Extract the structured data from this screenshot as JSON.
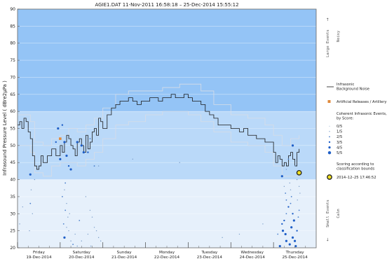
{
  "chart_data": {
    "type": "line",
    "title": "AGIE1.DAT   11-Nov-2011 16:58:18   –   25-Dec-2014 15:55:12",
    "ylabel": "Infrasound Pressure Level  ( dBre2µPa )",
    "ylim": [
      20,
      90
    ],
    "yticks": [
      20,
      25,
      30,
      35,
      40,
      45,
      50,
      55,
      60,
      65,
      70,
      75,
      80,
      85,
      90
    ],
    "xlim": [
      0,
      7
    ],
    "days": [
      {
        "day": "Friday",
        "date": "19-Dec-2014"
      },
      {
        "day": "Saturday",
        "date": "20-Dec-2014"
      },
      {
        "day": "Sunday",
        "date": "21-Dec-2014"
      },
      {
        "day": "Monday",
        "date": "22-Dec-2014"
      },
      {
        "day": "Tuesday",
        "date": "23-Dec-2014"
      },
      {
        "day": "Wednesday",
        "date": "24-Dec-2014"
      },
      {
        "day": "Thursday",
        "date": "25-Dec-2014"
      }
    ],
    "bands": [
      {
        "from": 60,
        "to": 90,
        "color": "#94c4f6"
      },
      {
        "from": 40,
        "to": 60,
        "color": "#bad9f9"
      },
      {
        "from": 20,
        "to": 40,
        "color": "#e6f0fb"
      }
    ],
    "right_annotations": {
      "large_events": "Large Events",
      "noisy": "Noisy",
      "small_events": "Small Events",
      "calm": "Calm",
      "arrow_up": "→",
      "arrow_down": "←"
    },
    "legend": {
      "background_noise": "Infrasonic\nBackground Noise",
      "artificial": "Artificial Releases / Artillery",
      "coherent_title": "Coherent Infrasonic Events,\nby Score:",
      "scores": [
        "0/5",
        "1/5",
        "2/5",
        "3/5",
        "4/5",
        "5/5"
      ],
      "scoring_note": "Scoring according to\nclassification bounds",
      "current_time": "2014–12–25 17:46:52"
    },
    "colors": {
      "noise_line": "#1a1a1a",
      "envelope": "#d8dde6",
      "artificial": "#e08a3c",
      "event_small": "#7a9cc8",
      "event_mid": "#4a7fcb",
      "event_high": "#1f5fc7",
      "current_fill": "#f0e020"
    },
    "series": [
      {
        "role": "background_noise",
        "x": [
          0.0,
          0.05,
          0.1,
          0.15,
          0.2,
          0.25,
          0.3,
          0.35,
          0.4,
          0.45,
          0.5,
          0.55,
          0.6,
          0.7,
          0.8,
          0.9,
          1.0,
          1.05,
          1.1,
          1.15,
          1.2,
          1.25,
          1.3,
          1.35,
          1.4,
          1.45,
          1.5,
          1.55,
          1.6,
          1.65,
          1.7,
          1.75,
          1.8,
          1.85,
          1.9,
          1.95,
          2.0,
          2.1,
          2.2,
          2.3,
          2.4,
          2.5,
          2.6,
          2.7,
          2.8,
          2.9,
          3.0,
          3.1,
          3.2,
          3.3,
          3.4,
          3.5,
          3.6,
          3.7,
          3.8,
          3.9,
          4.0,
          4.1,
          4.2,
          4.3,
          4.4,
          4.5,
          4.6,
          4.7,
          4.8,
          4.9,
          5.0,
          5.1,
          5.2,
          5.3,
          5.4,
          5.5,
          5.6,
          5.7,
          5.8,
          5.9,
          6.0,
          6.05,
          6.1,
          6.15,
          6.2,
          6.25,
          6.3,
          6.35,
          6.4,
          6.45,
          6.5,
          6.55,
          6.6
        ],
        "y": [
          56,
          57,
          55,
          58,
          57,
          54,
          52,
          47,
          44,
          43,
          44,
          47,
          45,
          47,
          49,
          47,
          50,
          48,
          51,
          53,
          52,
          50,
          49,
          47,
          51,
          52,
          50,
          48,
          53,
          49,
          51,
          54,
          55,
          53,
          58,
          57,
          55,
          59,
          61,
          62,
          63,
          63,
          64,
          63,
          62,
          63,
          63,
          64,
          64,
          63,
          64,
          64,
          65,
          64,
          64,
          65,
          64,
          63,
          63,
          62,
          60,
          59,
          58,
          56,
          56,
          56,
          55,
          55,
          54,
          55,
          53,
          53,
          52,
          52,
          51,
          51,
          48,
          45,
          47,
          46,
          44,
          45,
          44,
          47,
          48,
          46,
          44,
          48,
          49
        ]
      },
      {
        "role": "upper_envelope",
        "x": [
          0.0,
          0.3,
          0.4,
          0.6,
          0.8,
          1.0,
          1.2,
          1.4,
          1.6,
          1.8,
          2.0,
          2.3,
          2.6,
          3.0,
          3.4,
          3.8,
          4.0,
          4.3,
          4.6,
          5.0,
          5.4,
          5.8,
          6.0,
          6.2,
          6.4,
          6.6
        ],
        "y": [
          59,
          57,
          51,
          50,
          52,
          53,
          55,
          54,
          56,
          58,
          61,
          65,
          66,
          66,
          67,
          68,
          68,
          66,
          62,
          59,
          58,
          56,
          53,
          50,
          52,
          53
        ]
      },
      {
        "role": "lower_envelope",
        "x": [
          0.0,
          0.3,
          0.4,
          0.6,
          0.8,
          1.0,
          1.2,
          1.4,
          1.6,
          1.8,
          2.0,
          2.3,
          2.6,
          3.0,
          3.4,
          3.8,
          4.0,
          4.3,
          4.6,
          5.0,
          5.4,
          5.8,
          6.0,
          6.2,
          6.4,
          6.6
        ],
        "y": [
          50,
          48,
          42,
          41,
          44,
          45,
          45,
          44,
          46,
          48,
          52,
          56,
          57,
          59,
          60,
          60,
          59,
          57,
          54,
          51,
          50,
          48,
          44,
          41,
          41,
          42
        ]
      },
      {
        "role": "events",
        "points": [
          [
            0.3,
            41.5,
            4
          ],
          [
            0.3,
            33,
            2
          ],
          [
            0.32,
            37,
            1
          ],
          [
            0.35,
            30,
            1
          ],
          [
            0.28,
            25,
            1
          ],
          [
            0.12,
            32,
            1
          ],
          [
            0.05,
            27,
            1
          ],
          [
            0.4,
            40,
            1
          ],
          [
            0.9,
            51,
            3
          ],
          [
            0.95,
            55,
            4
          ],
          [
            1.05,
            56,
            3
          ],
          [
            1.1,
            51,
            4
          ],
          [
            1.12,
            39,
            2
          ],
          [
            1.0,
            46,
            4
          ],
          [
            1.15,
            47,
            4
          ],
          [
            1.2,
            44,
            3
          ],
          [
            1.25,
            43,
            4
          ],
          [
            1.4,
            51,
            4
          ],
          [
            1.5,
            50,
            4
          ],
          [
            1.55,
            48,
            4
          ],
          [
            1.65,
            48,
            3
          ],
          [
            1.7,
            52,
            2
          ],
          [
            1.8,
            44,
            2
          ],
          [
            1.9,
            44,
            1
          ],
          [
            1.1,
            37,
            1
          ],
          [
            1.05,
            35,
            2
          ],
          [
            1.15,
            33,
            1
          ],
          [
            1.12,
            31,
            2
          ],
          [
            1.18,
            29,
            1
          ],
          [
            1.08,
            27,
            2
          ],
          [
            1.2,
            25,
            1
          ],
          [
            1.1,
            23,
            4
          ],
          [
            1.25,
            22,
            1
          ],
          [
            1.3,
            21,
            2
          ],
          [
            1.35,
            24,
            1
          ],
          [
            1.4,
            20.5,
            1
          ],
          [
            1.45,
            28,
            2
          ],
          [
            1.5,
            22,
            1
          ],
          [
            1.15,
            26,
            1
          ],
          [
            1.22,
            30,
            1
          ],
          [
            1.6,
            35,
            1
          ],
          [
            1.7,
            31,
            1
          ],
          [
            1.75,
            29,
            1
          ],
          [
            1.8,
            26,
            1
          ],
          [
            1.85,
            25,
            1
          ],
          [
            1.9,
            23,
            1
          ],
          [
            1.95,
            22,
            1
          ],
          [
            1.65,
            24,
            1
          ],
          [
            1.72,
            20.5,
            1
          ],
          [
            2.7,
            46,
            1
          ],
          [
            3.8,
            45,
            1
          ],
          [
            4.8,
            23,
            1
          ],
          [
            5.2,
            24,
            1
          ],
          [
            5.75,
            27,
            1
          ],
          [
            6.2,
            41,
            4
          ],
          [
            6.25,
            38,
            1
          ],
          [
            6.28,
            36,
            2
          ],
          [
            6.3,
            34,
            2
          ],
          [
            6.35,
            32,
            3
          ],
          [
            6.3,
            30,
            2
          ],
          [
            6.25,
            28,
            3
          ],
          [
            6.2,
            27,
            3
          ],
          [
            6.22,
            25,
            4
          ],
          [
            6.28,
            24,
            4
          ],
          [
            6.3,
            22,
            4
          ],
          [
            6.38,
            21,
            4
          ],
          [
            6.42,
            26,
            4
          ],
          [
            6.45,
            23,
            4
          ],
          [
            6.5,
            22,
            4
          ],
          [
            6.48,
            28,
            4
          ],
          [
            6.45,
            30,
            3
          ],
          [
            6.4,
            33,
            2
          ],
          [
            6.42,
            35,
            2
          ],
          [
            6.4,
            37,
            1
          ],
          [
            6.38,
            39,
            1
          ],
          [
            6.52,
            20.5,
            4
          ],
          [
            6.55,
            25,
            3
          ],
          [
            6.58,
            29,
            2
          ],
          [
            6.6,
            31,
            2
          ],
          [
            6.56,
            34,
            1
          ],
          [
            6.62,
            36,
            1
          ],
          [
            6.15,
            20.5,
            4
          ],
          [
            6.35,
            46,
            2
          ],
          [
            6.45,
            50,
            4
          ],
          [
            6.5,
            44,
            1
          ],
          [
            6.3,
            43,
            1
          ],
          [
            6.55,
            40,
            1
          ],
          [
            6.6,
            38,
            1
          ],
          [
            6.1,
            24,
            2
          ]
        ]
      }
    ],
    "artificial_points": [
      [
        1.0,
        52
      ]
    ],
    "current_event": [
      6.6,
      42
    ]
  }
}
